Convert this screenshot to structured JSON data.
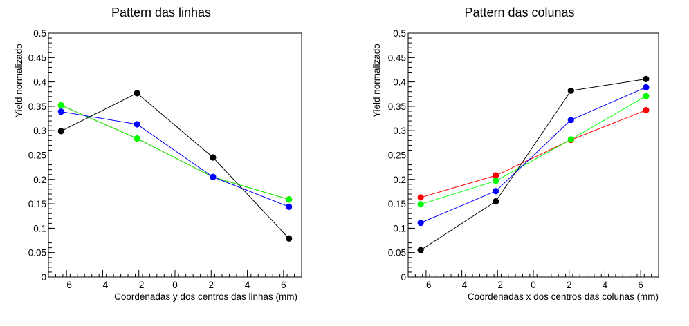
{
  "chart_data": [
    {
      "type": "line",
      "title": "Pattern das linhas",
      "xlabel": "Coordenadas y dos centros das linhas (mm)",
      "ylabel": "Yield normalizado",
      "xlim": [
        -7,
        7
      ],
      "ylim": [
        0,
        0.5
      ],
      "x_ticks": [
        -6,
        -4,
        -2,
        0,
        2,
        4,
        6
      ],
      "x_tick_labels": [
        "−6",
        "−4",
        "−2",
        "0",
        "2",
        "4",
        "6"
      ],
      "y_ticks": [
        0,
        0.05,
        0.1,
        0.15,
        0.2,
        0.25,
        0.3,
        0.35,
        0.4,
        0.45,
        0.5
      ],
      "y_tick_labels": [
        "0",
        "0.05",
        "0.1",
        "0.15",
        "0.2",
        "0.25",
        "0.3",
        "0.35",
        "0.4",
        "0.45",
        "0.5"
      ],
      "x": [
        -6.3,
        -2.1,
        2.1,
        6.3
      ],
      "series": [
        {
          "color": "#ff0000",
          "values": [
            0.352,
            0.284,
            0.205,
            0.159
          ]
        },
        {
          "color": "#00ff00",
          "values": [
            0.352,
            0.284,
            0.205,
            0.159
          ]
        },
        {
          "color": "#0000ff",
          "values": [
            0.339,
            0.313,
            0.205,
            0.144
          ]
        },
        {
          "color": "#000000",
          "values": [
            0.299,
            0.377,
            0.245,
            0.079
          ]
        }
      ]
    },
    {
      "type": "line",
      "title": "Pattern das colunas",
      "xlabel": "Coordenadas x dos centros das colunas (mm)",
      "ylabel": "Yield normalizado",
      "xlim": [
        -7,
        7
      ],
      "ylim": [
        0,
        0.5
      ],
      "x_ticks": [
        -6,
        -4,
        -2,
        0,
        2,
        4,
        6
      ],
      "x_tick_labels": [
        "−6",
        "−4",
        "−2",
        "0",
        "2",
        "4",
        "6"
      ],
      "y_ticks": [
        0,
        0.05,
        0.1,
        0.15,
        0.2,
        0.25,
        0.3,
        0.35,
        0.4,
        0.45,
        0.5
      ],
      "y_tick_labels": [
        "0",
        "0.05",
        "0.1",
        "0.15",
        "0.2",
        "0.25",
        "0.3",
        "0.35",
        "0.4",
        "0.45",
        "0.5"
      ],
      "x": [
        -6.3,
        -2.1,
        2.1,
        6.3
      ],
      "series": [
        {
          "color": "#ff0000",
          "values": [
            0.163,
            0.208,
            0.281,
            0.342
          ]
        },
        {
          "color": "#00ff00",
          "values": [
            0.149,
            0.197,
            0.282,
            0.371
          ]
        },
        {
          "color": "#0000ff",
          "values": [
            0.111,
            0.176,
            0.322,
            0.389
          ]
        },
        {
          "color": "#000000",
          "values": [
            0.055,
            0.155,
            0.382,
            0.406
          ]
        }
      ]
    }
  ]
}
